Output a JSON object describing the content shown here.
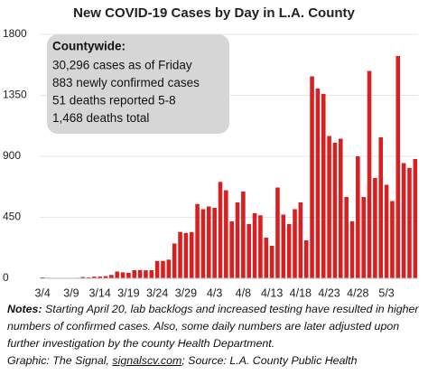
{
  "chart_data": {
    "type": "bar",
    "title": "New COVID-19 Cases by Day in L.A. County",
    "categories": [
      "3/4",
      null,
      null,
      null,
      null,
      "3/9",
      null,
      null,
      null,
      null,
      "3/14",
      null,
      null,
      null,
      null,
      "3/19",
      null,
      null,
      null,
      null,
      "3/24",
      null,
      null,
      null,
      null,
      "3/29",
      null,
      null,
      null,
      null,
      "4/3",
      null,
      null,
      null,
      null,
      "4/8",
      null,
      null,
      null,
      null,
      "4/13",
      null,
      null,
      null,
      null,
      "4/18",
      null,
      null,
      null,
      null,
      "4/23",
      null,
      null,
      null,
      null,
      "4/28",
      null,
      null,
      null,
      null,
      "5/3",
      null,
      null,
      null,
      null,
      null
    ],
    "values": [
      7,
      4,
      0,
      0,
      0,
      1,
      4,
      10,
      7,
      12,
      13,
      16,
      25,
      50,
      44,
      40,
      60,
      61,
      59,
      60,
      128,
      128,
      138,
      257,
      342,
      335,
      340,
      548,
      510,
      530,
      520,
      711,
      650,
      420,
      560,
      640,
      400,
      480,
      465,
      300,
      240,
      670,
      470,
      400,
      510,
      560,
      280,
      1490,
      1400,
      1360,
      1050,
      1000,
      1030,
      600,
      420,
      900,
      600,
      1530,
      740,
      1040,
      690,
      570,
      1640,
      850,
      815,
      880
    ],
    "color": "#d7201f",
    "ylim": [
      0,
      1800
    ],
    "yticks": [
      0,
      450,
      900,
      1350,
      1800
    ],
    "grid": true,
    "annotation": {
      "heading": "Countywide:",
      "lines": [
        "30,296 cases as of Friday",
        "883 newly confirmed cases",
        "51 deaths reported 5-8",
        "1,468 deaths total"
      ]
    }
  },
  "notes": {
    "label": "Notes:",
    "text": "Starting April 20, lab backlogs and increased testing have resulted in higher numbers of confirmed cases. Also, some daily numbers are later adjusted upon further investigation by the county Health Department."
  },
  "credit": {
    "prefix": "Graphic: The Signal,",
    "link": "signalscv.com",
    "suffix": "; Source: L.A. County Public Health"
  }
}
